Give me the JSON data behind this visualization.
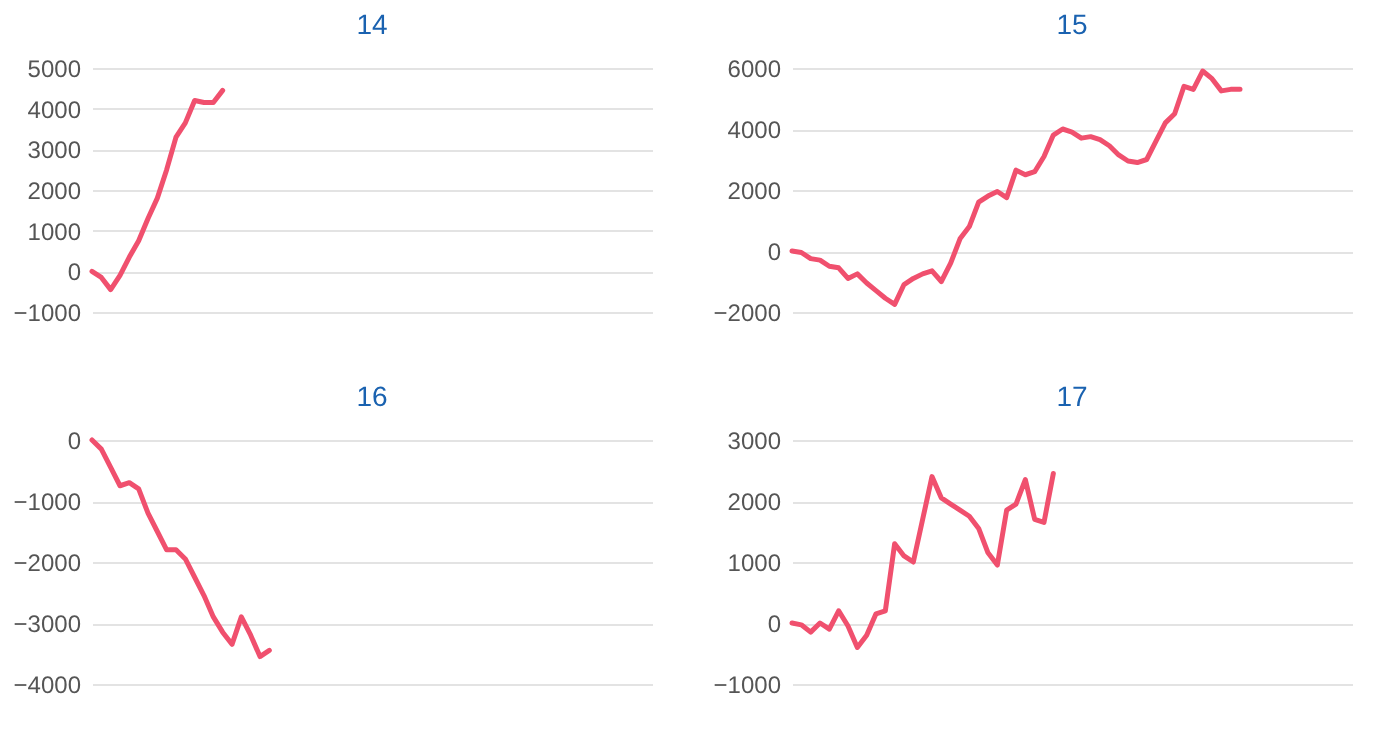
{
  "chart_data": [
    {
      "type": "line",
      "title": "14",
      "categories": [
        null,
        null,
        null,
        null,
        null,
        null,
        null,
        null,
        null,
        null,
        null,
        null,
        null,
        null,
        null,
        null,
        null,
        null,
        null,
        null,
        null,
        null,
        null,
        null,
        null,
        null,
        null,
        null,
        null,
        null,
        null,
        null,
        null,
        null,
        null,
        null,
        null,
        null,
        null,
        null,
        null,
        null,
        null,
        null,
        null,
        null,
        null,
        null,
        null,
        null,
        null,
        null,
        null,
        null,
        null,
        null,
        null,
        null,
        null,
        null,
        null
      ],
      "series": [
        {
          "color": "#f0506e",
          "values": [
            0,
            -150,
            -450,
            -100,
            350,
            750,
            1300,
            1800,
            2500,
            3300,
            3650,
            4200,
            4150,
            4150,
            4450,
            null,
            null,
            null,
            null,
            null,
            null,
            null,
            null,
            null,
            null,
            null,
            null,
            null,
            null,
            null,
            null,
            null,
            null,
            null,
            null,
            null,
            null,
            null,
            null,
            null,
            null,
            null,
            null,
            null,
            null,
            null,
            null,
            null,
            null,
            null,
            null,
            null,
            null,
            null,
            null,
            null,
            null,
            null,
            null,
            null,
            null
          ]
        }
      ],
      "ylim": [
        -1000,
        5000
      ],
      "yticks": [
        -1000,
        0,
        1000,
        2000,
        3000,
        4000,
        5000
      ],
      "grid": "y",
      "tick_labels": "y",
      "marker": "none"
    },
    {
      "type": "line",
      "title": "15",
      "categories": [
        null,
        null,
        null,
        null,
        null,
        null,
        null,
        null,
        null,
        null,
        null,
        null,
        null,
        null,
        null,
        null,
        null,
        null,
        null,
        null,
        null,
        null,
        null,
        null,
        null,
        null,
        null,
        null,
        null,
        null,
        null,
        null,
        null,
        null,
        null,
        null,
        null,
        null,
        null,
        null,
        null,
        null,
        null,
        null,
        null,
        null,
        null,
        null,
        null,
        null,
        null,
        null,
        null,
        null,
        null,
        null,
        null,
        null,
        null,
        null,
        null
      ],
      "series": [
        {
          "color": "#f0506e",
          "values": [
            0,
            -50,
            -250,
            -300,
            -500,
            -550,
            -900,
            -750,
            -1050,
            -1300,
            -1550,
            -1750,
            -1100,
            -900,
            -750,
            -650,
            -1000,
            -400,
            400,
            800,
            1600,
            1800,
            1950,
            1750,
            2650,
            2500,
            2600,
            3100,
            3800,
            4000,
            3900,
            3700,
            3750,
            3650,
            3450,
            3150,
            2950,
            2900,
            3000,
            3600,
            4200,
            4500,
            5400,
            5300,
            5900,
            5650,
            5250,
            5300,
            5300,
            null,
            null,
            null,
            null,
            null,
            null,
            null,
            null,
            null,
            null,
            null,
            null
          ]
        }
      ],
      "ylim": [
        -2000,
        6000
      ],
      "yticks": [
        -2000,
        0,
        2000,
        4000,
        6000
      ],
      "grid": "y",
      "tick_labels": "y",
      "marker": "none"
    },
    {
      "type": "line",
      "title": "16",
      "categories": [
        null,
        null,
        null,
        null,
        null,
        null,
        null,
        null,
        null,
        null,
        null,
        null,
        null,
        null,
        null,
        null,
        null,
        null,
        null,
        null,
        null,
        null,
        null,
        null,
        null,
        null,
        null,
        null,
        null,
        null,
        null,
        null,
        null,
        null,
        null,
        null,
        null,
        null,
        null,
        null,
        null,
        null,
        null,
        null,
        null,
        null,
        null,
        null,
        null,
        null,
        null,
        null,
        null,
        null,
        null,
        null,
        null,
        null,
        null,
        null,
        null
      ],
      "series": [
        {
          "color": "#f0506e",
          "values": [
            0,
            -150,
            -450,
            -750,
            -700,
            -800,
            -1200,
            -1500,
            -1800,
            -1800,
            -1950,
            -2250,
            -2550,
            -2900,
            -3150,
            -3350,
            -2900,
            -3200,
            -3550,
            -3450,
            null,
            null,
            null,
            null,
            null,
            null,
            null,
            null,
            null,
            null,
            null,
            null,
            null,
            null,
            null,
            null,
            null,
            null,
            null,
            null,
            null,
            null,
            null,
            null,
            null,
            null,
            null,
            null,
            null,
            null,
            null,
            null,
            null,
            null,
            null,
            null,
            null,
            null,
            null,
            null,
            null
          ]
        }
      ],
      "ylim": [
        -4000,
        0
      ],
      "yticks": [
        -4000,
        -3000,
        -2000,
        -1000,
        0
      ],
      "grid": "y",
      "tick_labels": "y",
      "marker": "none"
    },
    {
      "type": "line",
      "title": "17",
      "categories": [
        null,
        null,
        null,
        null,
        null,
        null,
        null,
        null,
        null,
        null,
        null,
        null,
        null,
        null,
        null,
        null,
        null,
        null,
        null,
        null,
        null,
        null,
        null,
        null,
        null,
        null,
        null,
        null,
        null,
        null,
        null,
        null,
        null,
        null,
        null,
        null,
        null,
        null,
        null,
        null,
        null,
        null,
        null,
        null,
        null,
        null,
        null,
        null,
        null,
        null,
        null,
        null,
        null,
        null,
        null,
        null,
        null,
        null,
        null,
        null,
        null
      ],
      "series": [
        {
          "color": "#f0506e",
          "values": [
            0,
            -30,
            -150,
            0,
            -100,
            200,
            -50,
            -400,
            -200,
            150,
            200,
            1300,
            1100,
            1000,
            1700,
            2400,
            2050,
            1950,
            1850,
            1750,
            1550,
            1150,
            950,
            1850,
            1950,
            2350,
            1700,
            1650,
            2450,
            null,
            null,
            null,
            null,
            null,
            null,
            null,
            null,
            null,
            null,
            null,
            null,
            null,
            null,
            null,
            null,
            null,
            null,
            null,
            null,
            null,
            null,
            null,
            null,
            null,
            null,
            null,
            null,
            null,
            null,
            null,
            null
          ]
        }
      ],
      "ylim": [
        -1000,
        3000
      ],
      "yticks": [
        -1000,
        0,
        1000,
        2000,
        3000
      ],
      "grid": "y",
      "tick_labels": "y",
      "marker": "none"
    }
  ]
}
